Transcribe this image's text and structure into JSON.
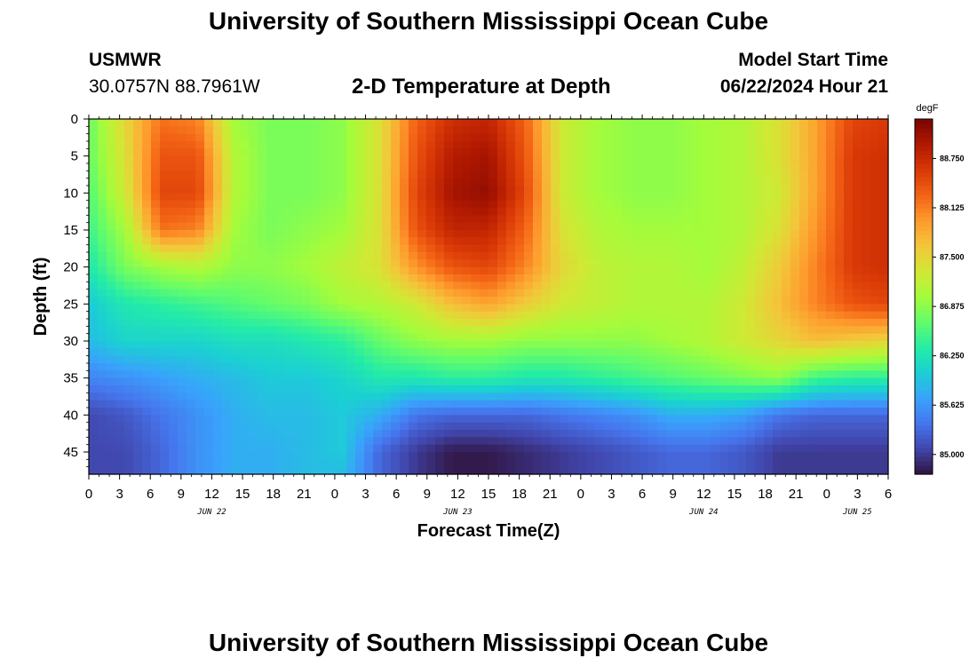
{
  "header": {
    "title": "University of Southern Mississippi Ocean Cube",
    "station": "USMWR",
    "coords": "30.0757N  88.7961W",
    "plot_title": "2-D Temperature at Depth",
    "model_label": "Model Start Time",
    "model_time": "06/22/2024 Hour 21"
  },
  "footer": {
    "title": "University of Southern Mississippi Ocean Cube"
  },
  "chart_data": {
    "type": "heatmap",
    "title": "2-D Temperature at Depth",
    "xlabel": "Forecast Time(Z)",
    "ylabel": "Depth (ft)",
    "colorbar_label": "degF",
    "xlim": [
      0,
      78
    ],
    "ylim": [
      48,
      0
    ],
    "x_ticks": [
      0,
      3,
      6,
      9,
      12,
      15,
      18,
      21,
      24,
      27,
      30,
      33,
      36,
      39,
      42,
      45,
      48,
      51,
      54,
      57,
      60,
      63,
      66,
      69,
      72,
      75,
      78
    ],
    "x_tick_labels": [
      "0",
      "3",
      "6",
      "9",
      "12",
      "15",
      "18",
      "21",
      "0",
      "3",
      "6",
      "9",
      "12",
      "15",
      "18",
      "21",
      "0",
      "3",
      "6",
      "9",
      "12",
      "15",
      "18",
      "21",
      "0",
      "3",
      "6"
    ],
    "y_ticks": [
      0,
      5,
      10,
      15,
      20,
      25,
      30,
      35,
      40,
      45
    ],
    "y_tick_labels": [
      "0",
      "5",
      "10",
      "15",
      "20",
      "25",
      "30",
      "35",
      "40",
      "45"
    ],
    "date_labels": [
      {
        "text": "JUN 22",
        "x": 12
      },
      {
        "text": "JUN 23",
        "x": 36
      },
      {
        "text": "JUN 24",
        "x": 60
      },
      {
        "text": "JUN 25",
        "x": 75
      }
    ],
    "colorbar_range": [
      84.75,
      89.25
    ],
    "colorbar_ticks": [
      85.0,
      85.625,
      86.25,
      86.875,
      87.5,
      88.125,
      88.75
    ],
    "colorbar_tick_labels": [
      "85.000",
      "85.625",
      "86.250",
      "86.875",
      "87.500",
      "88.125",
      "88.750"
    ],
    "colormap": [
      "#30123b",
      "#4145ab",
      "#4675ed",
      "#39a2fc",
      "#1bcfd4",
      "#24eca6",
      "#61fc6c",
      "#a4fc3b",
      "#d1e834",
      "#f3c63a",
      "#fe9b2d",
      "#f36315",
      "#d93806",
      "#b11901",
      "#7a0403"
    ],
    "grid_hours": [
      0,
      3,
      6,
      9,
      12,
      15,
      18,
      21,
      24,
      27,
      30,
      33,
      36,
      39,
      42,
      45,
      48,
      51,
      54,
      57,
      60,
      63,
      66,
      69,
      72,
      75,
      78
    ],
    "grid_depths": [
      0,
      5,
      10,
      15,
      20,
      25,
      30,
      35,
      40,
      45,
      48
    ],
    "temperature_degF": [
      [
        86.7,
        87.5,
        88.2,
        88.1,
        87.0,
        86.8,
        86.8,
        86.9,
        87.4,
        88.3,
        88.7,
        88.8,
        88.3,
        87.3,
        87.0,
        86.9,
        86.9,
        87.0,
        87.1,
        87.4,
        87.9,
        88.5,
        88.6
      ],
      [
        86.7,
        87.4,
        88.4,
        88.4,
        87.1,
        86.8,
        86.8,
        86.9,
        87.4,
        88.4,
        88.9,
        89.0,
        88.4,
        87.3,
        87.0,
        86.9,
        86.9,
        87.0,
        87.1,
        87.4,
        87.9,
        88.6,
        88.7
      ],
      [
        86.6,
        87.3,
        88.5,
        88.5,
        87.1,
        86.8,
        86.8,
        86.9,
        87.4,
        88.5,
        89.0,
        89.1,
        88.5,
        87.3,
        87.0,
        86.9,
        86.9,
        87.0,
        87.1,
        87.3,
        87.9,
        88.6,
        88.7
      ],
      [
        86.5,
        87.0,
        88.2,
        88.1,
        87.0,
        86.8,
        86.9,
        87.0,
        87.4,
        88.4,
        88.8,
        88.8,
        88.3,
        87.4,
        87.1,
        87.0,
        87.0,
        87.0,
        87.1,
        87.4,
        88.0,
        88.6,
        88.7
      ],
      [
        86.3,
        86.8,
        87.0,
        87.1,
        86.9,
        86.9,
        87.0,
        87.2,
        87.4,
        88.0,
        88.4,
        88.5,
        88.1,
        87.5,
        87.2,
        87.1,
        87.1,
        87.0,
        87.2,
        87.6,
        88.1,
        88.6,
        88.7
      ],
      [
        86.0,
        86.3,
        86.4,
        86.5,
        86.6,
        86.7,
        86.8,
        87.0,
        87.1,
        87.3,
        87.7,
        87.9,
        87.6,
        87.3,
        87.2,
        87.1,
        87.1,
        87.1,
        87.3,
        87.7,
        88.1,
        88.4,
        88.5
      ],
      [
        85.9,
        86.1,
        86.1,
        86.1,
        86.2,
        86.2,
        86.3,
        86.4,
        86.7,
        86.9,
        87.0,
        87.0,
        86.9,
        86.9,
        86.9,
        86.9,
        87.0,
        87.1,
        87.3,
        87.5,
        87.7,
        87.6,
        87.5
      ],
      [
        85.5,
        85.6,
        85.7,
        85.8,
        85.9,
        86.0,
        86.0,
        86.1,
        86.3,
        86.3,
        86.4,
        86.4,
        86.3,
        86.3,
        86.4,
        86.5,
        86.6,
        86.7,
        86.8,
        86.9,
        86.5,
        86.4,
        86.4
      ],
      [
        85.1,
        85.2,
        85.4,
        85.6,
        85.8,
        85.9,
        85.9,
        86.0,
        85.8,
        85.4,
        85.3,
        85.3,
        85.3,
        85.4,
        85.5,
        85.6,
        85.8,
        85.8,
        85.7,
        85.4,
        85.3,
        85.3,
        85.3
      ],
      [
        85.1,
        85.1,
        85.3,
        85.6,
        85.8,
        85.8,
        85.9,
        86.0,
        85.3,
        85.0,
        84.8,
        84.8,
        84.9,
        85.0,
        85.1,
        85.2,
        85.3,
        85.3,
        85.2,
        85.0,
        85.0,
        85.0,
        85.0
      ],
      [
        85.1,
        85.1,
        85.3,
        85.6,
        85.8,
        85.8,
        85.9,
        85.9,
        85.3,
        85.0,
        84.8,
        84.8,
        84.9,
        85.0,
        85.1,
        85.2,
        85.3,
        85.3,
        85.2,
        85.0,
        85.0,
        85.0,
        85.0
      ]
    ],
    "grid_hours_note": "columns align with every 3.5 forecast hours from 0 to 77"
  }
}
